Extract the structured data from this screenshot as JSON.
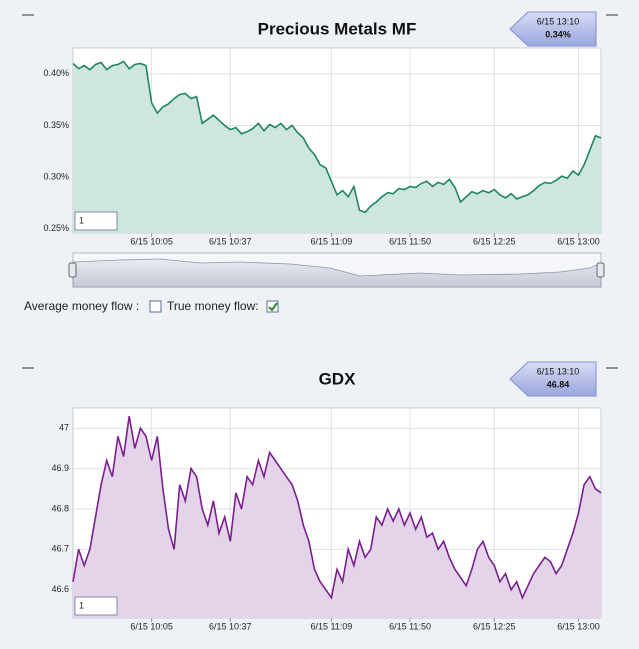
{
  "chart_data": [
    {
      "type": "area",
      "title": "Precious Metals MF",
      "values": [
        0.41,
        0.405,
        0.408,
        0.404,
        0.409,
        0.411,
        0.404,
        0.408,
        0.409,
        0.412,
        0.405,
        0.409,
        0.41,
        0.408,
        0.372,
        0.362,
        0.368,
        0.371,
        0.376,
        0.38,
        0.381,
        0.376,
        0.378,
        0.352,
        0.356,
        0.36,
        0.355,
        0.35,
        0.346,
        0.348,
        0.342,
        0.344,
        0.347,
        0.352,
        0.345,
        0.351,
        0.348,
        0.352,
        0.346,
        0.35,
        0.343,
        0.338,
        0.328,
        0.322,
        0.312,
        0.309,
        0.296,
        0.283,
        0.287,
        0.281,
        0.291,
        0.268,
        0.266,
        0.272,
        0.276,
        0.281,
        0.285,
        0.284,
        0.289,
        0.288,
        0.291,
        0.29,
        0.294,
        0.296,
        0.291,
        0.295,
        0.293,
        0.298,
        0.29,
        0.276,
        0.281,
        0.286,
        0.284,
        0.287,
        0.285,
        0.288,
        0.283,
        0.28,
        0.284,
        0.279,
        0.281,
        0.283,
        0.287,
        0.292,
        0.295,
        0.294,
        0.297,
        0.301,
        0.299,
        0.306,
        0.302,
        0.312,
        0.326,
        0.34,
        0.338
      ],
      "color": "#1e8660",
      "fill": "#cfe6de",
      "xlim": [
        0,
        94
      ],
      "xticks": [
        {
          "value": 14,
          "label": "6/15 10:05"
        },
        {
          "value": 28,
          "label": "6/15 10:37"
        },
        {
          "value": 46,
          "label": "6/15 11:09"
        },
        {
          "value": 60,
          "label": "6/15 11:50"
        },
        {
          "value": 75,
          "label": "6/15 12:25"
        },
        {
          "value": 90,
          "label": "6/15 13:00"
        }
      ],
      "ylim": [
        0.246,
        0.425
      ],
      "yticks": [
        {
          "value": 0.25,
          "label": "0.25%"
        },
        {
          "value": 0.3,
          "label": "0.30%"
        },
        {
          "value": 0.35,
          "label": "0.35%"
        },
        {
          "value": 0.4,
          "label": "0.40%"
        }
      ],
      "grid": true,
      "tooltip_time": "6/15 13:10",
      "tooltip_value": "0.34%",
      "range_input": "1"
    },
    {
      "type": "area",
      "title": "GDX",
      "values": [
        46.62,
        46.7,
        46.66,
        46.7,
        46.78,
        46.86,
        46.92,
        46.88,
        46.98,
        46.93,
        47.03,
        46.95,
        47.0,
        46.98,
        46.92,
        46.98,
        46.85,
        46.75,
        46.7,
        46.86,
        46.82,
        46.9,
        46.88,
        46.8,
        46.76,
        46.82,
        46.74,
        46.78,
        46.72,
        46.84,
        46.8,
        46.88,
        46.86,
        46.92,
        46.88,
        46.94,
        46.92,
        46.9,
        46.88,
        46.86,
        46.82,
        46.76,
        46.72,
        46.65,
        46.62,
        46.6,
        46.58,
        46.65,
        46.62,
        46.7,
        46.66,
        46.72,
        46.68,
        46.7,
        46.78,
        46.76,
        46.8,
        46.77,
        46.8,
        46.76,
        46.79,
        46.75,
        46.78,
        46.73,
        46.74,
        46.7,
        46.72,
        46.68,
        46.65,
        46.63,
        46.61,
        46.65,
        46.7,
        46.72,
        46.68,
        46.66,
        46.62,
        46.64,
        46.6,
        46.62,
        46.58,
        46.61,
        46.64,
        46.66,
        46.68,
        46.67,
        46.64,
        46.66,
        46.7,
        46.74,
        46.79,
        46.86,
        46.88,
        46.85,
        46.84
      ],
      "color": "#7a1f8e",
      "fill": "#e4d4e9",
      "xlim": [
        0,
        94
      ],
      "xticks": [
        {
          "value": 14,
          "label": "6/15 10:05"
        },
        {
          "value": 28,
          "label": "6/15 10:37"
        },
        {
          "value": 46,
          "label": "6/15 11:09"
        },
        {
          "value": 60,
          "label": "6/15 11:50"
        },
        {
          "value": 75,
          "label": "6/15 12:25"
        },
        {
          "value": 90,
          "label": "6/15 13:00"
        }
      ],
      "ylim": [
        46.53,
        47.05
      ],
      "yticks": [
        46.6,
        46.7,
        46.8,
        46.9,
        47
      ],
      "grid": true,
      "tooltip_time": "6/15 13:10",
      "tooltip_value": "46.84",
      "range_input": "1"
    }
  ],
  "controls": {
    "average_label": "Average money flow :",
    "true_label": "True money flow:",
    "average_checked": false,
    "true_checked": true
  }
}
